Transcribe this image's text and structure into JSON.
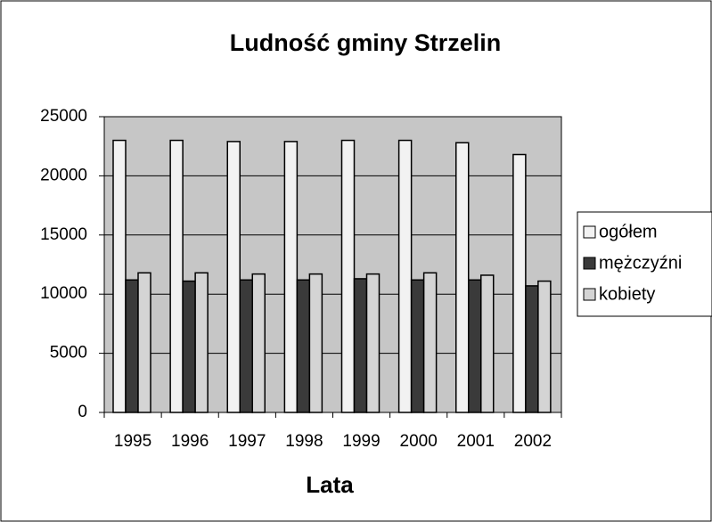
{
  "chart_data": {
    "type": "bar",
    "title": "Ludność gminy Strzelin",
    "x_label": "Lata",
    "categories": [
      "1995",
      "1996",
      "1997",
      "1998",
      "1999",
      "2000",
      "2001",
      "2002"
    ],
    "series": [
      {
        "name": "ogółem",
        "color": "#f2f2f2",
        "values": [
          23000,
          23000,
          22900,
          22900,
          23000,
          23000,
          22800,
          21800
        ]
      },
      {
        "name": "mężczyźni",
        "color": "#3a3a3a",
        "values": [
          11200,
          11100,
          11200,
          11200,
          11300,
          11200,
          11200,
          10700
        ]
      },
      {
        "name": "kobiety",
        "color": "#d4d4d4",
        "values": [
          11800,
          11800,
          11700,
          11700,
          11700,
          11800,
          11600,
          11100
        ]
      }
    ],
    "ylim": [
      0,
      25000
    ],
    "yticks": [
      0,
      5000,
      10000,
      15000,
      20000,
      25000
    ],
    "grid": true,
    "legend": "right"
  }
}
